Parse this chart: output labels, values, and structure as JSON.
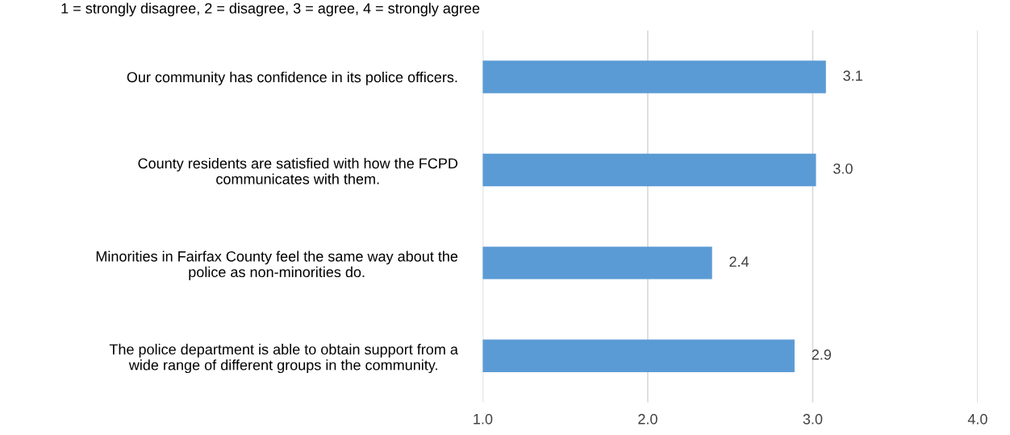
{
  "chart_data": {
    "type": "bar",
    "orientation": "horizontal",
    "title": "1 = strongly disagree, 2 = disagree, 3 = agree, 4 = strongly agree",
    "categories": [
      "Our community has confidence in its police officers.",
      "County residents are satisfied with how the FCPD\ncommunicates with them.",
      "Minorities in Fairfax County feel the same way about the\npolice as non-minorities do.",
      "The police department is able to obtain support from a\nwide range of different groups in the community."
    ],
    "values": [
      3.08,
      3.02,
      2.39,
      2.89
    ],
    "value_labels": [
      "3.1",
      "3.0",
      "2.4",
      "2.9"
    ],
    "color": "#5b9bd5",
    "xlim": [
      1,
      4
    ],
    "xticks": [
      {
        "value": 1,
        "label": "1.0"
      },
      {
        "value": 2,
        "label": "2.0"
      },
      {
        "value": 3,
        "label": "3.0"
      },
      {
        "value": 4,
        "label": "4.0"
      }
    ],
    "grid": "x"
  }
}
